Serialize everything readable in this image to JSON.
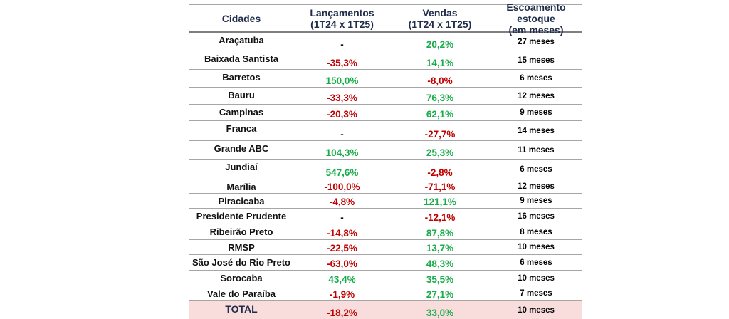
{
  "colors": {
    "positive": "#1aab4b",
    "negative": "#c00000",
    "neutral": "#111111",
    "total_bg": "#f9dcdc"
  },
  "headers": {
    "cidades": "Cidades",
    "lancamentos": "Lançamentos",
    "lancamentos_sub": "(1T24 x 1T25)",
    "vendas": "Vendas",
    "vendas_sub": "(1T24 x 1T25)",
    "escoamento": "Escoamento estoque",
    "escoamento_sub": "(em meses)"
  },
  "rows": [
    {
      "city": "Araçatuba",
      "lancamentos": "-",
      "vendas": "20,2%",
      "escoamento": "27 meses"
    },
    {
      "city": "Baixada Santista",
      "lancamentos": "-35,3%",
      "vendas": "14,1%",
      "escoamento": "15 meses"
    },
    {
      "city": "Barretos",
      "lancamentos": "150,0%",
      "vendas": "-8,0%",
      "escoamento": "6 meses"
    },
    {
      "city": "Bauru",
      "lancamentos": "-33,3%",
      "vendas": "76,3%",
      "escoamento": "12 meses"
    },
    {
      "city": "Campinas",
      "lancamentos": "-20,3%",
      "vendas": "62,1%",
      "escoamento": "9 meses"
    },
    {
      "city": "Franca",
      "lancamentos": "-",
      "vendas": "-27,7%",
      "escoamento": "14 meses"
    },
    {
      "city": "Grande ABC",
      "lancamentos": "104,3%",
      "vendas": "25,3%",
      "escoamento": "11 meses"
    },
    {
      "city": "Jundiaí",
      "lancamentos": "547,6%",
      "vendas": "-2,8%",
      "escoamento": "6 meses"
    },
    {
      "city": "Marília",
      "lancamentos": "-100,0%",
      "vendas": "-71,1%",
      "escoamento": "12 meses"
    },
    {
      "city": "Piracicaba",
      "lancamentos": "-4,8%",
      "vendas": "121,1%",
      "escoamento": "9 meses"
    },
    {
      "city": "Presidente Prudente",
      "lancamentos": "-",
      "vendas": "-12,1%",
      "escoamento": "16 meses"
    },
    {
      "city": "Ribeirão Preto",
      "lancamentos": "-14,8%",
      "vendas": "87,8%",
      "escoamento": "8 meses"
    },
    {
      "city": "RMSP",
      "lancamentos": "-22,5%",
      "vendas": "13,7%",
      "escoamento": "10 meses"
    },
    {
      "city": "São José do Rio Preto",
      "lancamentos": "-63,0%",
      "vendas": "48,3%",
      "escoamento": "6 meses"
    },
    {
      "city": "Sorocaba",
      "lancamentos": "43,4%",
      "vendas": "35,5%",
      "escoamento": "10 meses"
    },
    {
      "city": "Vale do Paraíba",
      "lancamentos": "-1,9%",
      "vendas": "27,1%",
      "escoamento": "7 meses"
    }
  ],
  "total": {
    "city": "TOTAL",
    "lancamentos": "-18,2%",
    "vendas": "33,0%",
    "escoamento": "10 meses"
  }
}
